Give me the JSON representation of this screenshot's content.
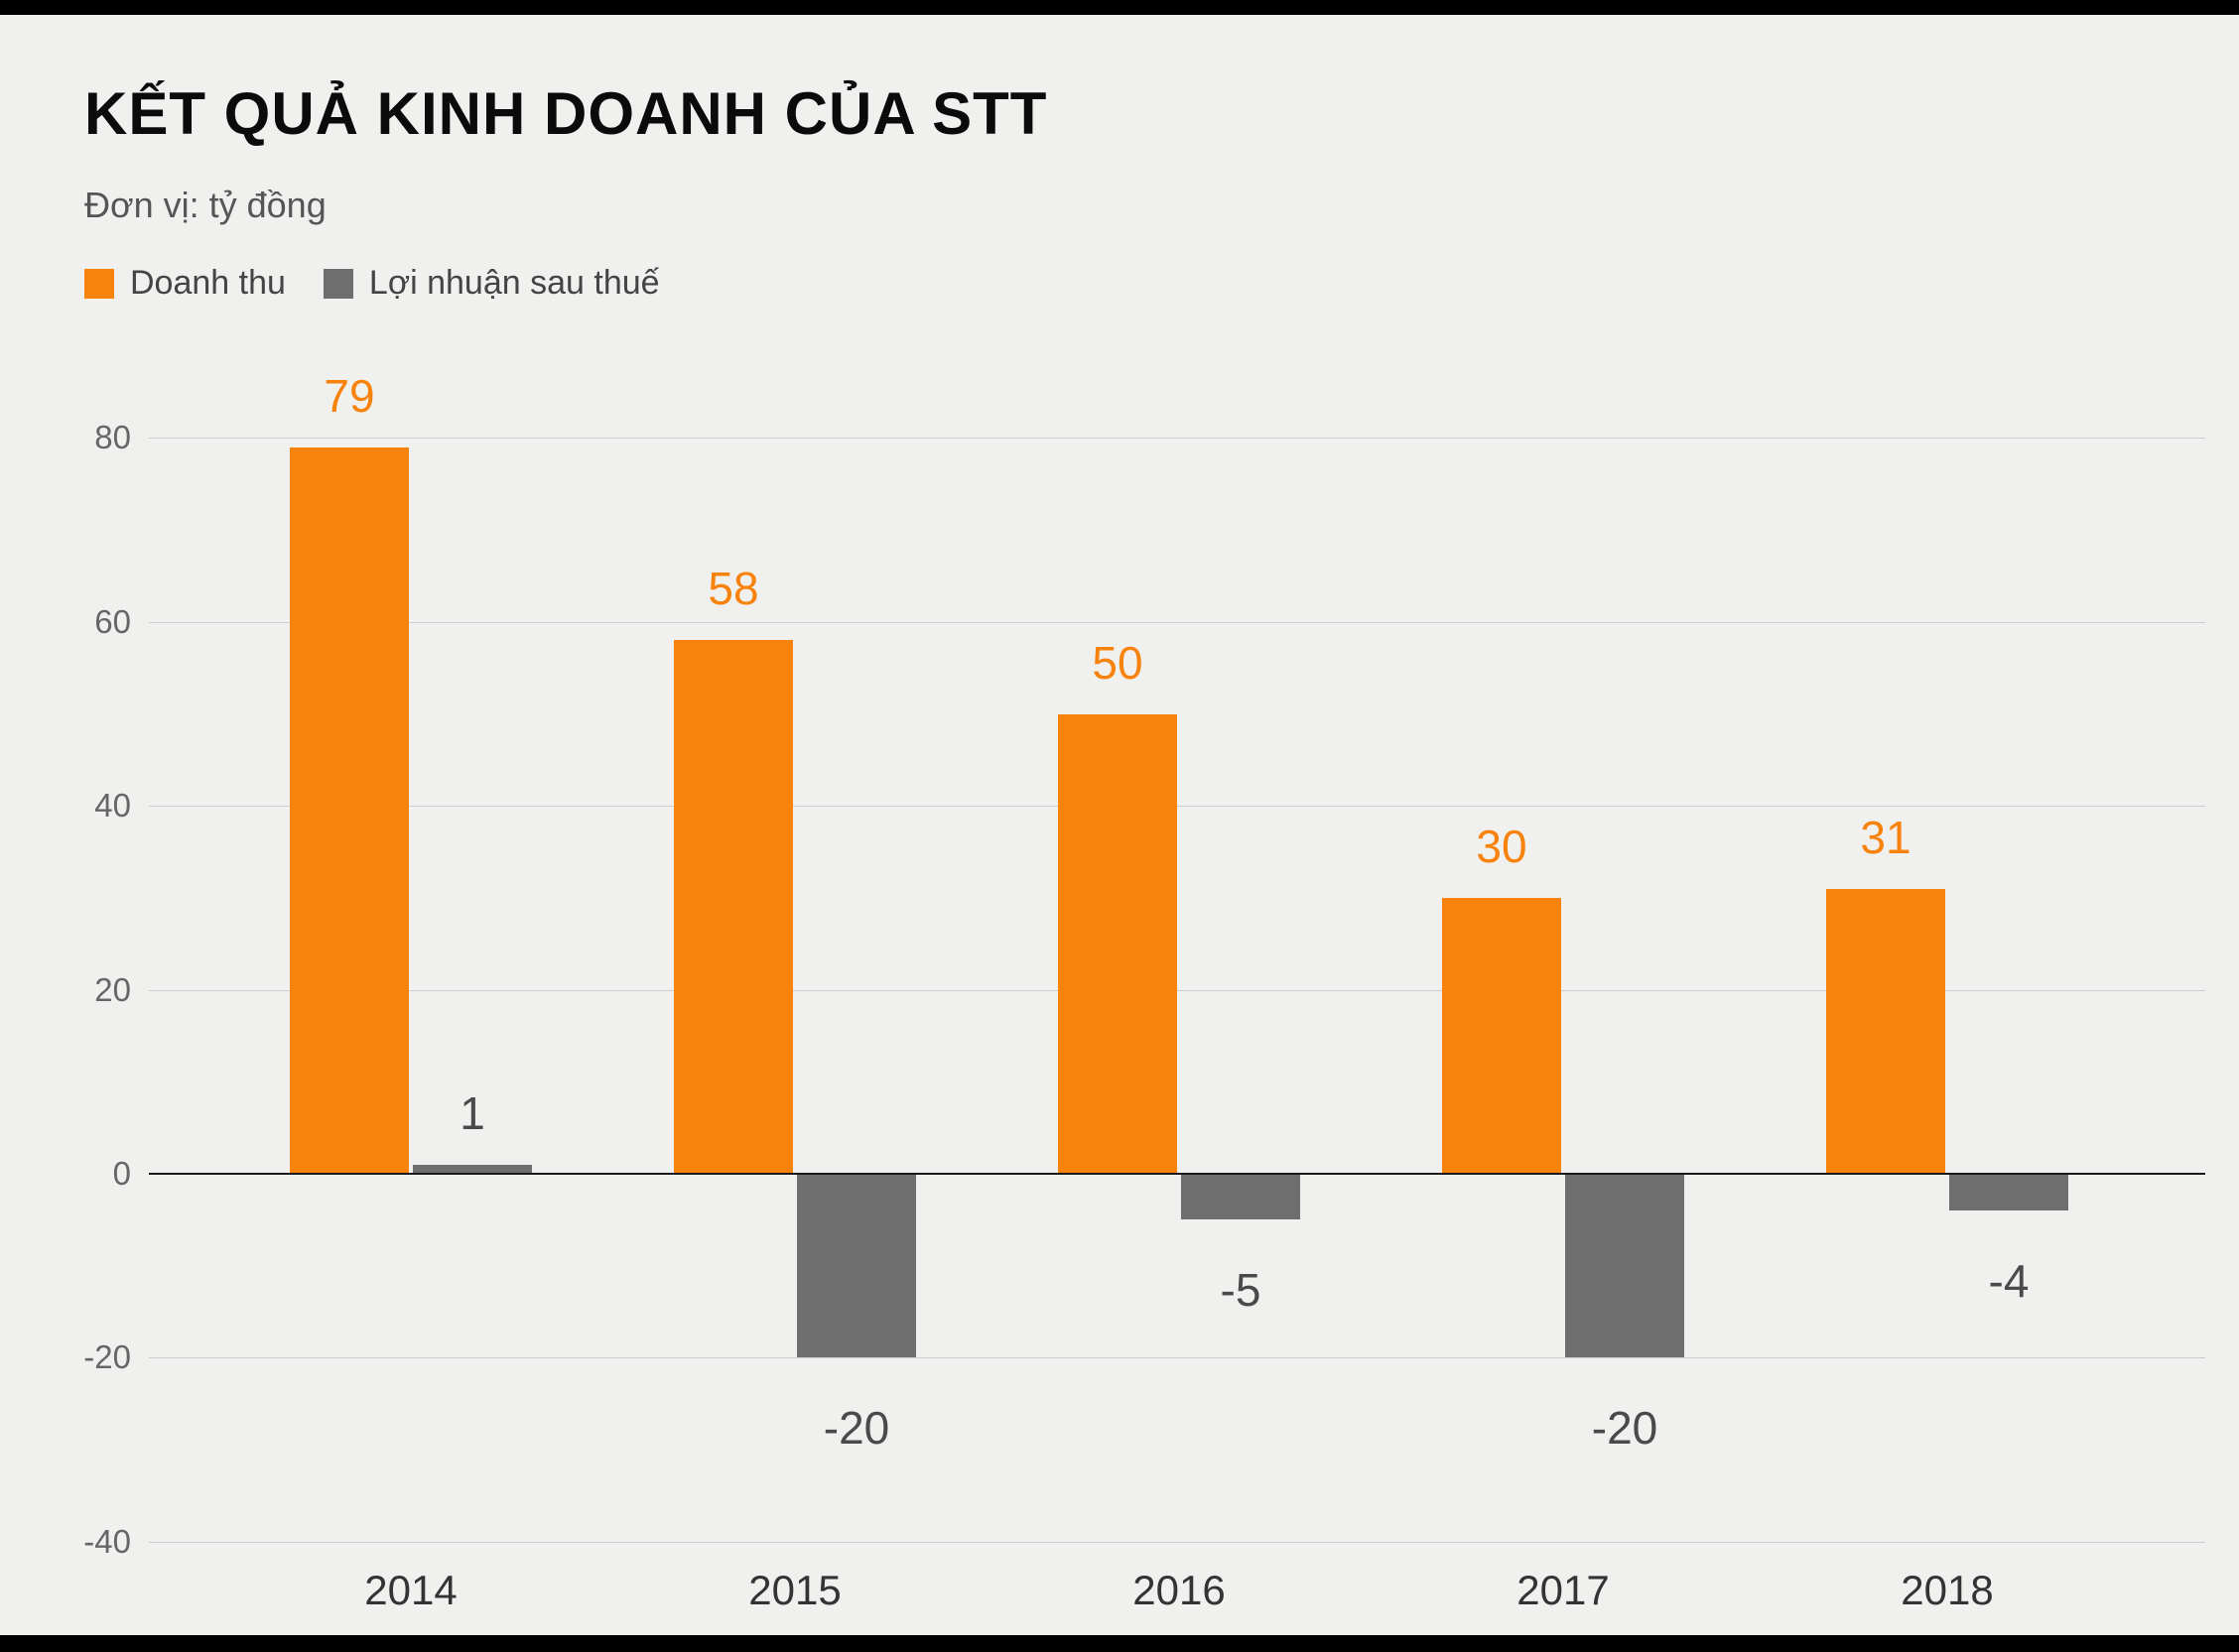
{
  "page": {
    "title": "KẾT QUẢ KINH DOANH CỦA STT",
    "subtitle": "Đơn vị: tỷ đồng"
  },
  "chart_data": {
    "type": "bar",
    "title": "KẾT QUẢ KINH DOANH CỦA STT",
    "unit_label": "Đơn vị: tỷ đồng",
    "categories": [
      "2014",
      "2015",
      "2016",
      "2017",
      "2018"
    ],
    "series": [
      {
        "name": "Doanh thu",
        "key": "revenue",
        "color": "#f7820c",
        "values": [
          79,
          58,
          50,
          30,
          31
        ]
      },
      {
        "name": "Lợi nhuận sau thuế",
        "key": "profit",
        "color": "#6e6e6e",
        "values": [
          1,
          -20,
          -5,
          -20,
          -4
        ]
      }
    ],
    "yticks": [
      80,
      60,
      40,
      20,
      0,
      -20,
      -40
    ],
    "ylim": [
      -40,
      80
    ],
    "grid": true,
    "legend_position": "top-left",
    "value_label_colors": {
      "revenue": "#f7820c",
      "profit": "#4a4a4a"
    }
  }
}
